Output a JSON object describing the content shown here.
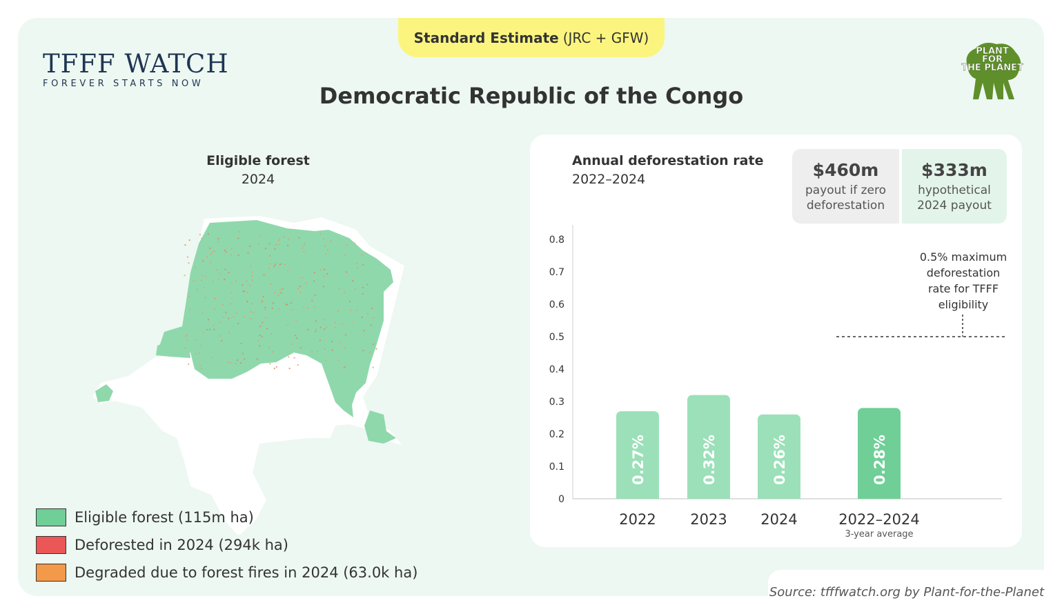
{
  "header": {
    "estimate_bold": "Standard Estimate",
    "estimate_rest": "(JRC + GFW)",
    "logo_main": "TFFF WATCH",
    "logo_sub": "FOREVER STARTS NOW",
    "title": "Democratic Republic of the Congo",
    "partner_logo_text": "PLANT FOR THE PLANET"
  },
  "map": {
    "title": "Eligible forest",
    "subtitle": "2024",
    "legend": [
      {
        "label": "Eligible forest (115m ha)",
        "color": "#6fcf97"
      },
      {
        "label": "Deforested in 2024 (294k ha)",
        "color": "#eb5757"
      },
      {
        "label": "Degraded due to forest fires in 2024 (63.0k ha)",
        "color": "#f2994a"
      }
    ]
  },
  "payouts": [
    {
      "amount": "$460m",
      "label_line1": "payout if zero",
      "label_line2": "deforestation"
    },
    {
      "amount": "$333m",
      "label_line1": "hypothetical",
      "label_line2": "2024 payout"
    }
  ],
  "chart_data": {
    "type": "bar",
    "title": "Annual deforestation rate",
    "subtitle": "2022–2024",
    "categories": [
      "2022",
      "2023",
      "2024",
      "2022–2024"
    ],
    "category_notes": [
      "",
      "",
      "",
      "3-year average"
    ],
    "values": [
      0.27,
      0.32,
      0.26,
      0.28
    ],
    "value_labels": [
      "0.27%",
      "0.32%",
      "0.26%",
      "0.28%"
    ],
    "bar_colors": [
      "#9be0b8",
      "#9be0b8",
      "#9be0b8",
      "#6fcf97"
    ],
    "ylim": [
      0,
      0.8
    ],
    "yticks": [
      "0",
      "0.1",
      "0.2",
      "0.3",
      "0.4",
      "0.5",
      "0.6",
      "0.7",
      "0.8"
    ],
    "threshold": {
      "value": 0.5,
      "label_lines": [
        "0.5% maximum",
        "deforestation",
        "rate for TFFF",
        "eligibility"
      ]
    },
    "grid": false,
    "legend": "none"
  },
  "source": "Source: tfffwatch.org by Plant-for-the-Planet"
}
